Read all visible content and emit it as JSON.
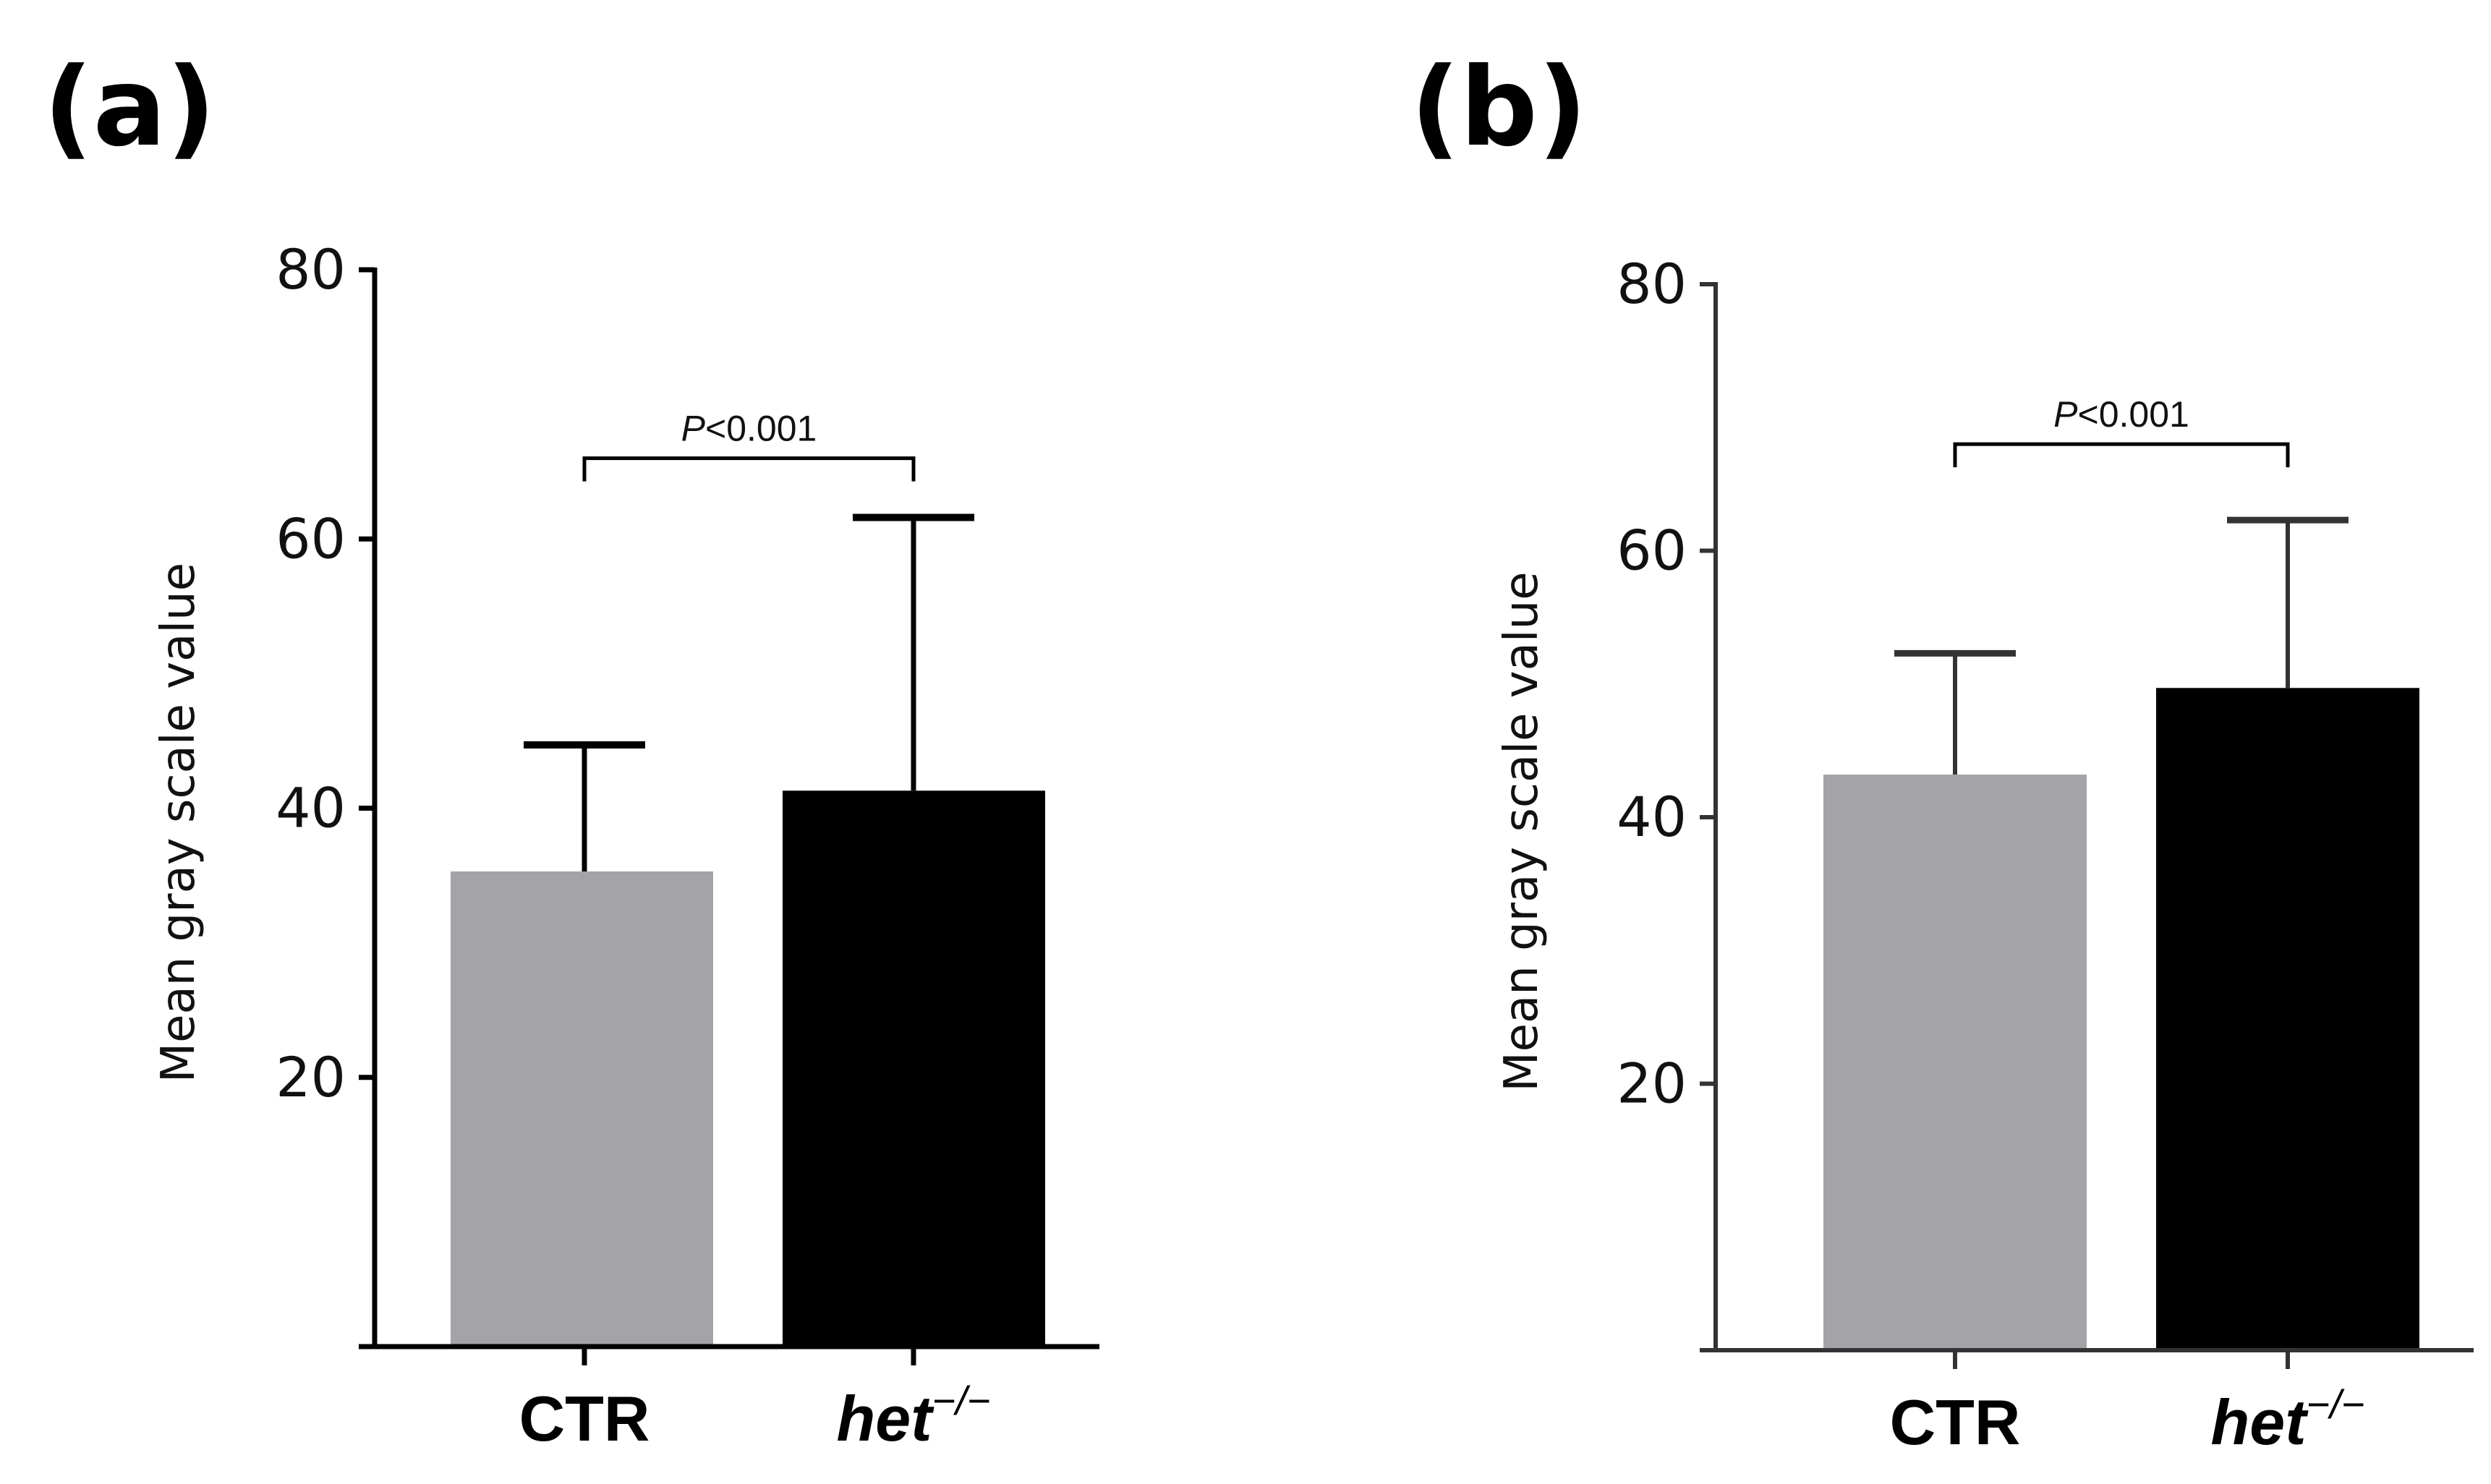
{
  "chart_data": [
    {
      "panel": "(a)",
      "type": "bar",
      "title": "",
      "xlabel": "",
      "ylabel": "Mean gray scale value",
      "ylim": [
        0,
        80
      ],
      "yticks": [
        20,
        40,
        60,
        80
      ],
      "categories": [
        "CTR",
        "het"
      ],
      "category_superscripts": [
        "",
        "−/−"
      ],
      "values": [
        35.3,
        41.3
      ],
      "errors": [
        9.4,
        20.3
      ],
      "colors": [
        "#a3a3a8",
        "#000000"
      ],
      "significance": {
        "text": "P<0.001",
        "italic_prefix": "P",
        "rest": "<0.001",
        "between": [
          "CTR",
          "het"
        ],
        "y": 66
      }
    },
    {
      "panel": "(b)",
      "type": "bar",
      "title": "",
      "xlabel": "",
      "ylabel": "Mean gray scale value",
      "ylim": [
        0,
        80
      ],
      "yticks": [
        20,
        40,
        60,
        80
      ],
      "categories": [
        "CTR",
        "het"
      ],
      "category_superscripts": [
        "",
        "−/−"
      ],
      "values": [
        43.2,
        49.7
      ],
      "errors": [
        9.1,
        12.6
      ],
      "colors": [
        "#a3a3a8",
        "#000000"
      ],
      "significance": {
        "text": "P<0.001",
        "italic_prefix": "P",
        "rest": "<0.001",
        "between": [
          "CTR",
          "het"
        ],
        "y": 68
      }
    }
  ]
}
